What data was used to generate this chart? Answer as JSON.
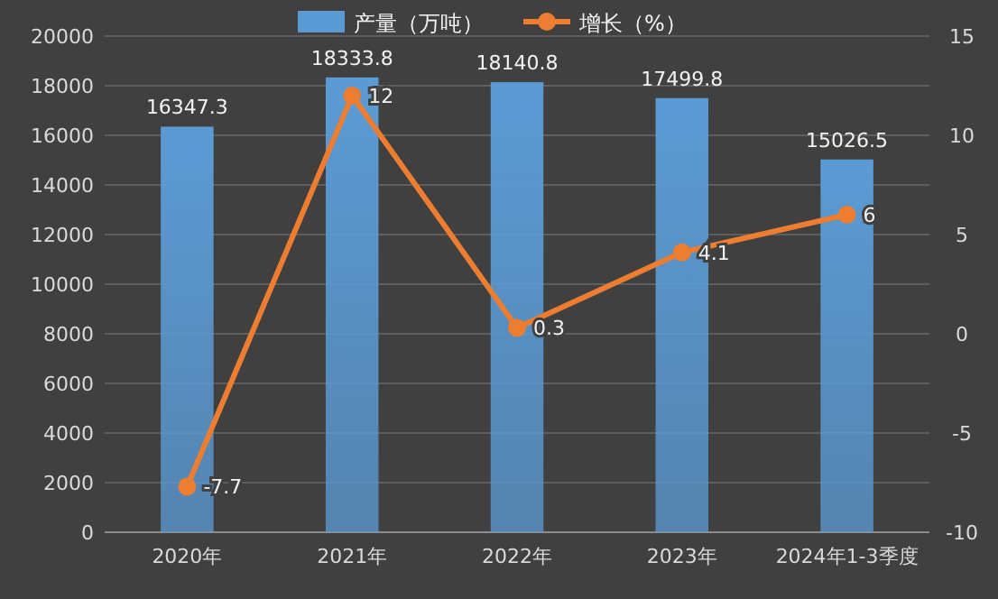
{
  "chart_data": {
    "type": "bar",
    "categories": [
      "2020年",
      "2021年",
      "2022年",
      "2023年",
      "2024年1-3季度"
    ],
    "series": [
      {
        "name": "产量（万吨）",
        "color": "#5b9bd5",
        "values": [
          16347.3,
          18333.8,
          18140.8,
          17499.8,
          15026.5
        ]
      },
      {
        "name": "增长（%）",
        "type": "line",
        "axis": "y2",
        "color": "#ed7d31",
        "values": [
          -7.7,
          12,
          0.3,
          4.1,
          6
        ]
      }
    ],
    "ylim": [
      0,
      20000
    ],
    "yticks": [
      0,
      2000,
      4000,
      6000,
      8000,
      10000,
      12000,
      14000,
      16000,
      18000,
      20000
    ],
    "y2lim": [
      -10,
      15
    ],
    "y2ticks": [
      -10,
      -5,
      0,
      5,
      10,
      15
    ],
    "data_labels": true,
    "grid": "y",
    "legend": "top",
    "marker": "circle",
    "line_style": "solid"
  }
}
